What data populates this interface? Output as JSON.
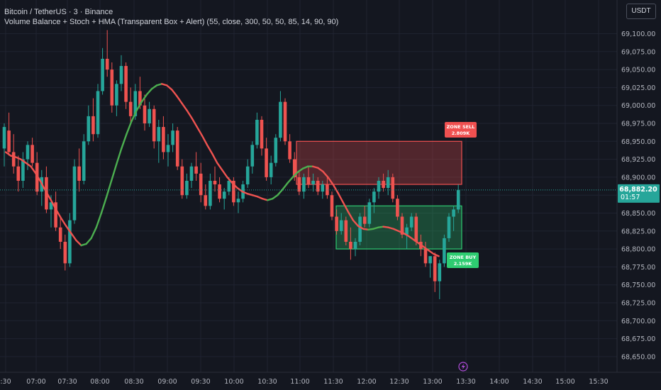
{
  "header": {
    "symbol_line": "Bitcoin / TetherUS · 3 · Binance",
    "indicator_line": "Volume Balance + Stoch + HMA (Transparent Box + Alert) (55, close, 300, 50, 50, 85, 14, 90, 90)",
    "currency_button": "USDT"
  },
  "price_badge": {
    "price": "68,882.20",
    "countdown": "01:57"
  },
  "colors": {
    "up": "#26a69a",
    "down": "#ef5350",
    "hma_up": "#4caf50",
    "hma_down": "#ef5350",
    "sell_zone": "#f05050",
    "buy_zone": "#2ecc71",
    "background": "#141720"
  },
  "chart_data": {
    "type": "candlestick",
    "y_ticks": [
      "69,100.00",
      "69,075.00",
      "69,050.00",
      "69,025.00",
      "69,000.00",
      "68,975.00",
      "68,950.00",
      "68,925.00",
      "68,900.00",
      "68,875.00",
      "68,850.00",
      "68,825.00",
      "68,800.00",
      "68,775.00",
      "68,750.00",
      "68,725.00",
      "68,700.00",
      "68,675.00",
      "68,650.00"
    ],
    "y_range": [
      68635,
      69115
    ],
    "x_ticks": [
      ":30",
      "07:00",
      "07:30",
      "08:00",
      "08:30",
      "09:00",
      "09:30",
      "10:00",
      "10:30",
      "11:00",
      "11:30",
      "12:00",
      "12:30",
      "13:00",
      "13:30",
      "14:00",
      "14:30",
      "15:00",
      "15:30"
    ],
    "last_price": 68882.2,
    "zones": [
      {
        "label": "ZONE SELL",
        "value": "2.809K",
        "top": 68950,
        "bottom": 68890
      },
      {
        "label": "ZONE BUY",
        "value": "2.159K",
        "top": 68860,
        "bottom": 68800
      }
    ],
    "candles": [
      [
        68940,
        68975,
        68915,
        68970
      ],
      [
        68965,
        68990,
        68930,
        68935
      ],
      [
        68935,
        68960,
        68905,
        68915
      ],
      [
        68915,
        68930,
        68880,
        68895
      ],
      [
        68895,
        68935,
        68885,
        68925
      ],
      [
        68925,
        68950,
        68910,
        68945
      ],
      [
        68945,
        68955,
        68915,
        68920
      ],
      [
        68920,
        68935,
        68875,
        68880
      ],
      [
        68880,
        68910,
        68860,
        68900
      ],
      [
        68900,
        68915,
        68850,
        68855
      ],
      [
        68855,
        68875,
        68830,
        68865
      ],
      [
        68865,
        68880,
        68825,
        68830
      ],
      [
        68830,
        68845,
        68800,
        68810
      ],
      [
        68810,
        68820,
        68770,
        68780
      ],
      [
        68780,
        68850,
        68775,
        68840
      ],
      [
        68840,
        68925,
        68835,
        68915
      ],
      [
        68915,
        68940,
        68880,
        68895
      ],
      [
        68895,
        68960,
        68890,
        68950
      ],
      [
        68950,
        69000,
        68945,
        68985
      ],
      [
        68985,
        69010,
        68950,
        68960
      ],
      [
        68960,
        69030,
        68955,
        69020
      ],
      [
        69020,
        69080,
        69015,
        69065
      ],
      [
        69065,
        69105,
        69040,
        69050
      ],
      [
        69050,
        69060,
        68990,
        69000
      ],
      [
        69000,
        69035,
        68985,
        69030
      ],
      [
        69030,
        69070,
        69020,
        69055
      ],
      [
        69055,
        69060,
        68995,
        69005
      ],
      [
        69005,
        69025,
        68975,
        68985
      ],
      [
        68985,
        69030,
        68980,
        69020
      ],
      [
        69020,
        69040,
        68995,
        69000
      ],
      [
        69000,
        69015,
        68965,
        68975
      ],
      [
        68975,
        69005,
        68970,
        68995
      ],
      [
        68995,
        69000,
        68940,
        68950
      ],
      [
        68950,
        68980,
        68920,
        68970
      ],
      [
        68970,
        68985,
        68925,
        68935
      ],
      [
        68935,
        68960,
        68915,
        68945
      ],
      [
        68945,
        68975,
        68935,
        68965
      ],
      [
        68965,
        68970,
        68910,
        68915
      ],
      [
        68915,
        68925,
        68870,
        68875
      ],
      [
        68875,
        68905,
        68870,
        68895
      ],
      [
        68895,
        68920,
        68885,
        68915
      ],
      [
        68915,
        68935,
        68895,
        68905
      ],
      [
        68905,
        68920,
        68865,
        68875
      ],
      [
        68875,
        68890,
        68855,
        68860
      ],
      [
        68860,
        68905,
        68855,
        68895
      ],
      [
        68895,
        68915,
        68880,
        68890
      ],
      [
        68890,
        68900,
        68865,
        68870
      ],
      [
        68870,
        68885,
        68855,
        68880
      ],
      [
        68880,
        68900,
        68875,
        68895
      ],
      [
        68895,
        68900,
        68860,
        68865
      ],
      [
        68865,
        68880,
        68850,
        68870
      ],
      [
        68870,
        68895,
        68865,
        68890
      ],
      [
        68890,
        68925,
        68885,
        68915
      ],
      [
        68915,
        68950,
        68905,
        68945
      ],
      [
        68945,
        68990,
        68940,
        68980
      ],
      [
        68980,
        68985,
        68930,
        68940
      ],
      [
        68940,
        68955,
        68895,
        68900
      ],
      [
        68900,
        68930,
        68890,
        68920
      ],
      [
        68920,
        68960,
        68915,
        68955
      ],
      [
        68955,
        69020,
        68950,
        69005
      ],
      [
        69005,
        69010,
        68945,
        68950
      ],
      [
        68950,
        68960,
        68920,
        68925
      ],
      [
        68925,
        68935,
        68895,
        68900
      ],
      [
        68900,
        68910,
        68875,
        68880
      ],
      [
        68880,
        68905,
        68870,
        68900
      ],
      [
        68900,
        68915,
        68885,
        68890
      ],
      [
        68890,
        68905,
        68880,
        68895
      ],
      [
        68895,
        68900,
        68875,
        68880
      ],
      [
        68880,
        68895,
        68870,
        68890
      ],
      [
        68890,
        68900,
        68870,
        68875
      ],
      [
        68875,
        68880,
        68840,
        68845
      ],
      [
        68845,
        68855,
        68820,
        68825
      ],
      [
        68825,
        68850,
        68820,
        68840
      ],
      [
        68840,
        68845,
        68805,
        68810
      ],
      [
        68810,
        68830,
        68785,
        68800
      ],
      [
        68800,
        68815,
        68790,
        68810
      ],
      [
        68810,
        68850,
        68805,
        68845
      ],
      [
        68845,
        68860,
        68830,
        68835
      ],
      [
        68835,
        68870,
        68830,
        68865
      ],
      [
        68865,
        68885,
        68850,
        68880
      ],
      [
        68880,
        68900,
        68870,
        68895
      ],
      [
        68895,
        68905,
        68880,
        68885
      ],
      [
        68885,
        68910,
        68875,
        68900
      ],
      [
        68900,
        68905,
        68865,
        68870
      ],
      [
        68870,
        68875,
        68840,
        68845
      ],
      [
        68845,
        68850,
        68815,
        68820
      ],
      [
        68820,
        68835,
        68800,
        68830
      ],
      [
        68830,
        68850,
        68825,
        68845
      ],
      [
        68845,
        68850,
        68805,
        68810
      ],
      [
        68810,
        68820,
        68790,
        68800
      ],
      [
        68800,
        68810,
        68775,
        68780
      ],
      [
        68780,
        68790,
        68760,
        68790
      ],
      [
        68790,
        68795,
        68740,
        68755
      ],
      [
        68755,
        68785,
        68730,
        68780
      ],
      [
        68780,
        68820,
        68775,
        68815
      ],
      [
        68815,
        68850,
        68810,
        68845
      ],
      [
        68845,
        68860,
        68825,
        68855
      ],
      [
        68855,
        68890,
        68850,
        68882
      ]
    ],
    "hma": [
      68935,
      68930,
      68928,
      68925,
      68920,
      68915,
      68905,
      68893,
      68880,
      68868,
      68855,
      68843,
      68832,
      68822,
      68812,
      68805,
      68807,
      68815,
      68830,
      68850,
      68872,
      68895,
      68918,
      68940,
      68960,
      68978,
      68993,
      69005,
      69015,
      69023,
      69028,
      69030,
      69028,
      69022,
      69013,
      69003,
      68993,
      68982,
      68970,
      68958,
      68945,
      68933,
      68920,
      68910,
      68900,
      68892,
      68885,
      68880,
      68877,
      68875,
      68873,
      68870,
      68868,
      68870,
      68875,
      68883,
      68892,
      68900,
      68907,
      68912,
      68915,
      68915,
      68913,
      68908,
      68900,
      68890,
      68878,
      68865,
      68852,
      68840,
      68832,
      68828,
      68827,
      68828,
      68830,
      68831,
      68830,
      68828,
      68825,
      68822,
      68818,
      68813,
      68808,
      68803,
      68798,
      68793,
      68790
    ]
  }
}
